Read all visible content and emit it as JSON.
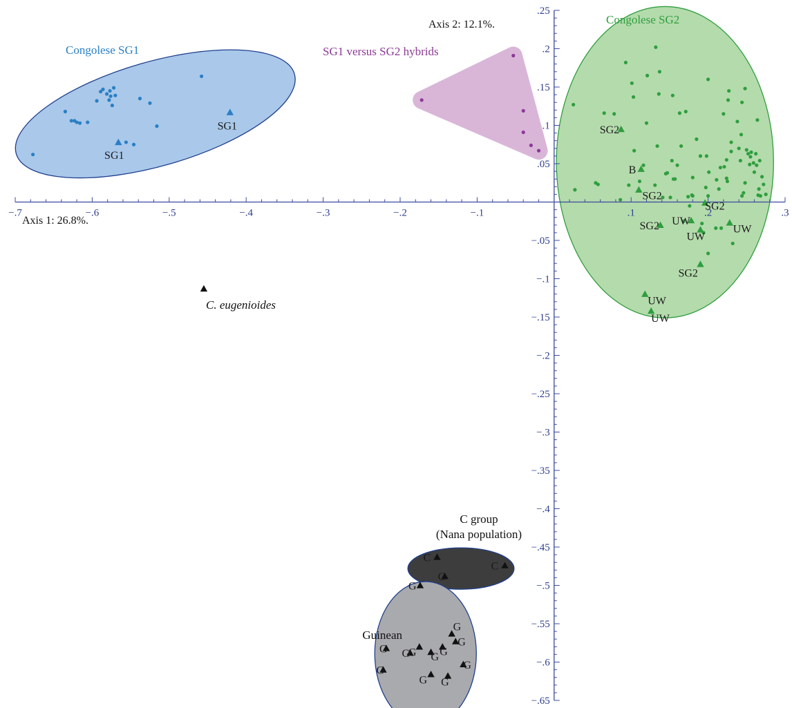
{
  "chart_data": {
    "type": "scatter",
    "title": "",
    "xlim": [
      -0.7,
      0.3
    ],
    "ylim": [
      -0.65,
      0.25
    ],
    "x_ticks": [
      {
        "value": -0.7,
        "label": "−.7"
      },
      {
        "value": -0.6,
        "label": "−.6"
      },
      {
        "value": -0.5,
        "label": "−.5"
      },
      {
        "value": -0.4,
        "label": "−.4"
      },
      {
        "value": -0.3,
        "label": "−.3"
      },
      {
        "value": -0.2,
        "label": "−.2"
      },
      {
        "value": -0.1,
        "label": "−.1"
      },
      {
        "value": 0.1,
        "label": ".1"
      },
      {
        "value": 0.2,
        "label": ".2"
      },
      {
        "value": 0.3,
        "label": ".3"
      }
    ],
    "y_ticks": [
      {
        "value": 0.25,
        "label": ".25"
      },
      {
        "value": 0.2,
        "label": ".2"
      },
      {
        "value": 0.15,
        "label": ".15"
      },
      {
        "value": 0.1,
        "label": ".1"
      },
      {
        "value": 0.05,
        "label": ".05"
      },
      {
        "value": -0.05,
        "label": "−.05"
      },
      {
        "value": -0.1,
        "label": "−.1"
      },
      {
        "value": -0.15,
        "label": "−.15"
      },
      {
        "value": -0.2,
        "label": "−.2"
      },
      {
        "value": -0.25,
        "label": "−.25"
      },
      {
        "value": -0.3,
        "label": "−.3"
      },
      {
        "value": -0.35,
        "label": "−.35"
      },
      {
        "value": -0.4,
        "label": "−.4"
      },
      {
        "value": -0.45,
        "label": "−.45"
      },
      {
        "value": -0.5,
        "label": "−.5"
      },
      {
        "value": -0.55,
        "label": "−.55"
      },
      {
        "value": -0.6,
        "label": "−.6"
      },
      {
        "value": -0.65,
        "label": "−.65"
      }
    ],
    "xlabel": "Axis 1: 26.8%.",
    "ylabel": "Axis 2: 12.1%.",
    "grid": false,
    "groups": [
      {
        "name": "Congolese SG1",
        "color": "#2a7fc4",
        "fill": "#a9c8ea",
        "stroke": "#1f3f8c",
        "hull": "ellipse",
        "ellipse": {
          "cx": -0.518,
          "cy": 0.115,
          "rx": 0.188,
          "ry": 0.068,
          "angle_deg": -16
        },
        "points": [
          [
            -0.677,
            0.062
          ],
          [
            -0.635,
            0.118
          ],
          [
            -0.627,
            0.106
          ],
          [
            -0.623,
            0.106
          ],
          [
            -0.62,
            0.104
          ],
          [
            -0.616,
            0.103
          ],
          [
            -0.606,
            0.104
          ],
          [
            -0.594,
            0.132
          ],
          [
            -0.589,
            0.144
          ],
          [
            -0.586,
            0.147
          ],
          [
            -0.581,
            0.141
          ],
          [
            -0.578,
            0.133
          ],
          [
            -0.577,
            0.145
          ],
          [
            -0.576,
            0.138
          ],
          [
            -0.574,
            0.126
          ],
          [
            -0.572,
            0.149
          ],
          [
            -0.57,
            0.139
          ],
          [
            -0.566,
            0.078
          ],
          [
            -0.556,
            0.078
          ],
          [
            -0.546,
            0.075
          ],
          [
            -0.538,
            0.135
          ],
          [
            -0.525,
            0.129
          ],
          [
            -0.516,
            0.099
          ],
          [
            -0.458,
            0.164
          ]
        ],
        "markers": [
          {
            "label": "SG1",
            "x": -0.566,
            "y": 0.078
          },
          {
            "label": "SG1",
            "x": -0.421,
            "y": 0.117
          }
        ]
      },
      {
        "name": "SG1 versus SG2 hybrids",
        "color": "#8b3a96",
        "fill": "#d9b6d8",
        "stroke": "#d9b6d8",
        "hull": "polygon",
        "points": [
          [
            -0.172,
            0.133
          ],
          [
            -0.053,
            0.191
          ],
          [
            -0.04,
            0.119
          ],
          [
            -0.04,
            0.091
          ],
          [
            -0.03,
            0.074
          ],
          [
            -0.02,
            0.067
          ]
        ],
        "markers": []
      },
      {
        "name": "Congolese SG2",
        "color": "#2f9e3f",
        "fill": "#b4dbac",
        "stroke": "#2f9e3f",
        "hull": "ellipse",
        "ellipse": {
          "cx": 0.144,
          "cy": 0.052,
          "rx": 0.141,
          "ry": 0.203,
          "angle_deg": 0
        },
        "points": [
          [
            0.025,
            0.127
          ],
          [
            0.027,
            0.016
          ],
          [
            0.054,
            0.025
          ],
          [
            0.057,
            0.023
          ],
          [
            0.065,
            0.116
          ],
          [
            0.078,
            0.115
          ],
          [
            0.086,
            0.003
          ],
          [
            0.093,
            0.182
          ],
          [
            0.097,
            0.022
          ],
          [
            0.101,
            0.155
          ],
          [
            0.103,
            0.137
          ],
          [
            0.104,
            0.067
          ],
          [
            0.111,
            0.027
          ],
          [
            0.116,
            0.048
          ],
          [
            0.12,
            0.103
          ],
          [
            0.121,
            0.165
          ],
          [
            0.131,
            0.022
          ],
          [
            0.132,
            0.202
          ],
          [
            0.134,
            0.073
          ],
          [
            0.136,
            0.141
          ],
          [
            0.137,
            0.17
          ],
          [
            0.141,
            0.006
          ],
          [
            0.145,
            0.037
          ],
          [
            0.147,
            0.038
          ],
          [
            0.151,
            0.006
          ],
          [
            0.153,
            0.054
          ],
          [
            0.154,
            0.139
          ],
          [
            0.155,
            0.03
          ],
          [
            0.157,
            0.03
          ],
          [
            0.16,
            0.048
          ],
          [
            0.163,
            0.116
          ],
          [
            0.165,
            0.073
          ],
          [
            0.168,
            -0.025
          ],
          [
            0.171,
            0.118
          ],
          [
            0.174,
            0.007
          ],
          [
            0.176,
            -0.005
          ],
          [
            0.179,
            0.009
          ],
          [
            0.18,
            0.008
          ],
          [
            0.18,
            0.032
          ],
          [
            0.185,
            0.082
          ],
          [
            0.19,
            0.06
          ],
          [
            0.192,
            -0.028
          ],
          [
            0.194,
            -0.04
          ],
          [
            0.197,
            0.019
          ],
          [
            0.198,
            0.06
          ],
          [
            0.2,
            0.16
          ],
          [
            0.2,
            0.008
          ],
          [
            0.2,
            -0.067
          ],
          [
            0.201,
            0.039
          ],
          [
            0.21,
            -0.034
          ],
          [
            0.211,
            0.029
          ],
          [
            0.214,
            0.017
          ],
          [
            0.216,
            0.045
          ],
          [
            0.217,
            -0.034
          ],
          [
            0.22,
            0.115
          ],
          [
            0.221,
            0.046
          ],
          [
            0.224,
            0.055
          ],
          [
            0.224,
            0.031
          ],
          [
            0.225,
            0.027
          ],
          [
            0.226,
            0.133
          ],
          [
            0.227,
            0.145
          ],
          [
            0.23,
            0.078
          ],
          [
            0.23,
            0.066
          ],
          [
            0.232,
            -0.054
          ],
          [
            0.238,
            0.105
          ],
          [
            0.24,
            0.07
          ],
          [
            0.242,
            0.054
          ],
          [
            0.243,
            0.088
          ],
          [
            0.244,
            0.13
          ],
          [
            0.244,
            0.008
          ],
          [
            0.246,
            0.012
          ],
          [
            0.248,
            0.025
          ],
          [
            0.248,
            0.148
          ],
          [
            0.25,
            0.068
          ],
          [
            0.252,
            0.063
          ],
          [
            0.254,
            0.049
          ],
          [
            0.255,
            0.059
          ],
          [
            0.256,
            0.065
          ],
          [
            0.259,
            0.051
          ],
          [
            0.26,
            0.039
          ],
          [
            0.262,
            0.063
          ],
          [
            0.263,
            0.048
          ],
          [
            0.264,
            0.107
          ],
          [
            0.265,
            0.009
          ],
          [
            0.266,
            0.017
          ],
          [
            0.267,
            0.054
          ],
          [
            0.268,
            0.008
          ],
          [
            0.27,
            0.033
          ],
          [
            0.272,
            0.023
          ],
          [
            0.275,
            0.01
          ]
        ],
        "markers": [
          {
            "label": "SG2",
            "x": 0.087,
            "y": 0.095
          },
          {
            "label": "B",
            "x": 0.113,
            "y": 0.043
          },
          {
            "label": "SG2",
            "x": 0.11,
            "y": 0.016
          },
          {
            "label": "SG2",
            "x": 0.196,
            "y": -0.001
          },
          {
            "label": "SG2",
            "x": 0.138,
            "y": -0.03
          },
          {
            "label": "UW",
            "x": 0.178,
            "y": -0.024
          },
          {
            "label": "UW",
            "x": 0.19,
            "y": -0.036
          },
          {
            "label": "UW",
            "x": 0.228,
            "y": -0.027
          },
          {
            "label": "SG2",
            "x": 0.19,
            "y": -0.081
          },
          {
            "label": "UW",
            "x": 0.118,
            "y": -0.12
          },
          {
            "label": "UW",
            "x": 0.126,
            "y": -0.142
          }
        ]
      },
      {
        "name": "C group\n(Nana population)",
        "color": "#111111",
        "fill": "#3d3d3d",
        "stroke": "#1f3f8c",
        "hull": "ellipse",
        "ellipse": {
          "cx": -0.121,
          "cy": -0.478,
          "rx": 0.069,
          "ry": 0.027,
          "angle_deg": 0
        },
        "points": [],
        "markers": [
          {
            "label": "C",
            "x": -0.152,
            "y": -0.463
          },
          {
            "label": "C",
            "x": -0.142,
            "y": -0.488
          },
          {
            "label": "C",
            "x": -0.064,
            "y": -0.474
          }
        ]
      },
      {
        "name": "Guinean",
        "color": "#111111",
        "fill": "#a9aaae",
        "stroke": "#1f3f8c",
        "hull": "ellipse",
        "ellipse": {
          "cx": -0.167,
          "cy": -0.589,
          "rx": 0.066,
          "ry": 0.094,
          "angle_deg": 0
        },
        "points": [],
        "markers": [
          {
            "label": "G",
            "x": -0.174,
            "y": -0.5
          },
          {
            "label": "G",
            "x": -0.218,
            "y": -0.582
          },
          {
            "label": "G",
            "x": -0.175,
            "y": -0.58
          },
          {
            "label": "G",
            "x": -0.145,
            "y": -0.58
          },
          {
            "label": "G",
            "x": -0.187,
            "y": -0.588
          },
          {
            "label": "G",
            "x": -0.16,
            "y": -0.587
          },
          {
            "label": "G",
            "x": -0.133,
            "y": -0.563
          },
          {
            "label": "G",
            "x": -0.128,
            "y": -0.573
          },
          {
            "label": "G",
            "x": -0.222,
            "y": -0.61
          },
          {
            "label": "G",
            "x": -0.16,
            "y": -0.616
          },
          {
            "label": "G",
            "x": -0.138,
            "y": -0.618
          },
          {
            "label": "G",
            "x": -0.118,
            "y": -0.603
          }
        ]
      },
      {
        "name": "C. eugenioides",
        "color": "#111111",
        "hull": "none",
        "points": [],
        "markers": [
          {
            "label": "",
            "x": -0.455,
            "y": -0.113
          }
        ]
      }
    ]
  }
}
